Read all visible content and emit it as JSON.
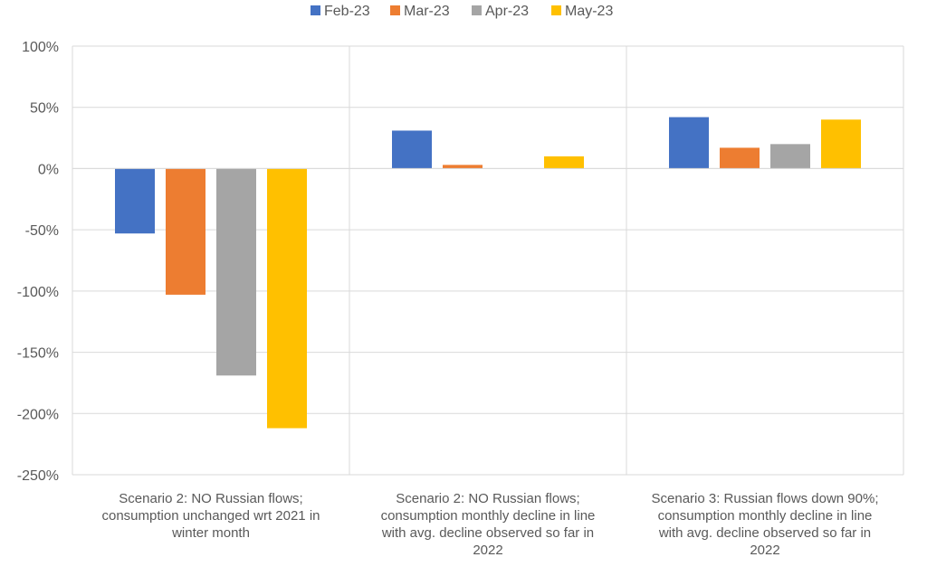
{
  "chart_data": {
    "type": "bar",
    "title": "",
    "xlabel": "",
    "ylabel": "",
    "ylim": [
      -250,
      100
    ],
    "ytick_step": 50,
    "ytick_labels": [
      "100%",
      "50%",
      "0%",
      "-50%",
      "-100%",
      "-150%",
      "-200%",
      "-250%"
    ],
    "grid": true,
    "legend_position": "top",
    "categories": [
      [
        "Scenario 2: NO Russian flows;",
        "consumption unchanged wrt 2021 in",
        "winter month"
      ],
      [
        "Scenario 2: NO Russian flows;",
        "consumption monthly decline in line",
        "with avg. decline observed so far in",
        "2022"
      ],
      [
        "Scenario 3: Russian flows down 90%;",
        "consumption monthly decline in line",
        "with avg. decline observed so far in",
        "2022"
      ]
    ],
    "series": [
      {
        "name": "Feb-23",
        "color": "#4472C4",
        "values": [
          -53,
          31,
          42
        ]
      },
      {
        "name": "Mar-23",
        "color": "#ED7D31",
        "values": [
          -103,
          3,
          17
        ]
      },
      {
        "name": "Apr-23",
        "color": "#A5A5A5",
        "values": [
          -169,
          0,
          20
        ]
      },
      {
        "name": "May-23",
        "color": "#FFC000",
        "values": [
          -212,
          10,
          40
        ]
      }
    ]
  }
}
